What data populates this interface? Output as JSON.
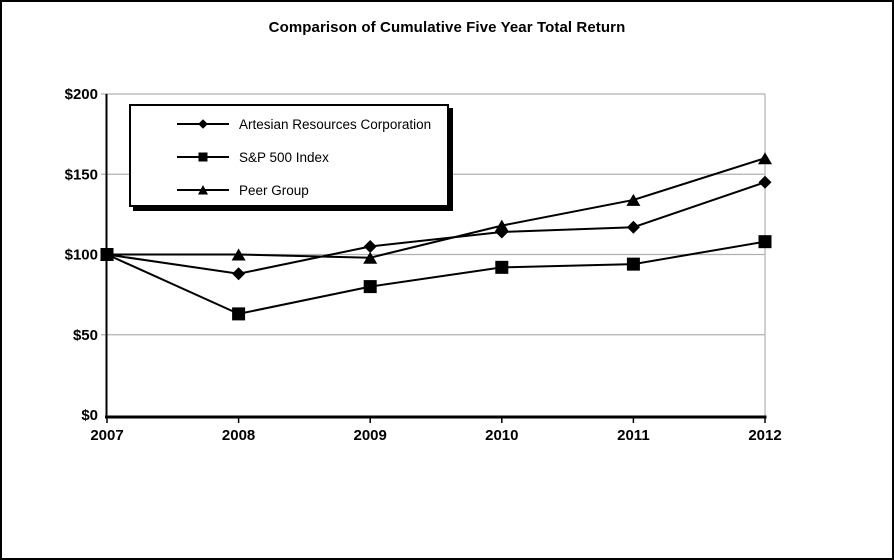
{
  "chart_data": {
    "type": "line",
    "title": "Comparison of Cumulative Five Year Total Return",
    "x": [
      2007,
      2008,
      2009,
      2010,
      2011,
      2012
    ],
    "xtick_labels": [
      "2007",
      "2008",
      "2009",
      "2010",
      "2011",
      "2012"
    ],
    "series": [
      {
        "name": "Artesian Resources Corporation",
        "marker": "diamond",
        "values": [
          100,
          88,
          105,
          114,
          117,
          145
        ]
      },
      {
        "name": "S&P 500 Index",
        "marker": "square",
        "values": [
          100,
          63,
          80,
          92,
          94,
          108
        ]
      },
      {
        "name": "Peer Group",
        "marker": "triangle",
        "values": [
          100,
          100,
          98,
          118,
          134,
          160
        ]
      }
    ],
    "ylim": [
      0,
      200
    ],
    "yticks": [
      0,
      50,
      100,
      150,
      200
    ],
    "ytick_labels": [
      "$0",
      "$50",
      "$100",
      "$150",
      "$200"
    ],
    "grid": true,
    "legend_position": "top-left-inside",
    "line_color": "#000000",
    "gridline_color": "#b0b0b0",
    "text_color": "#000000"
  }
}
